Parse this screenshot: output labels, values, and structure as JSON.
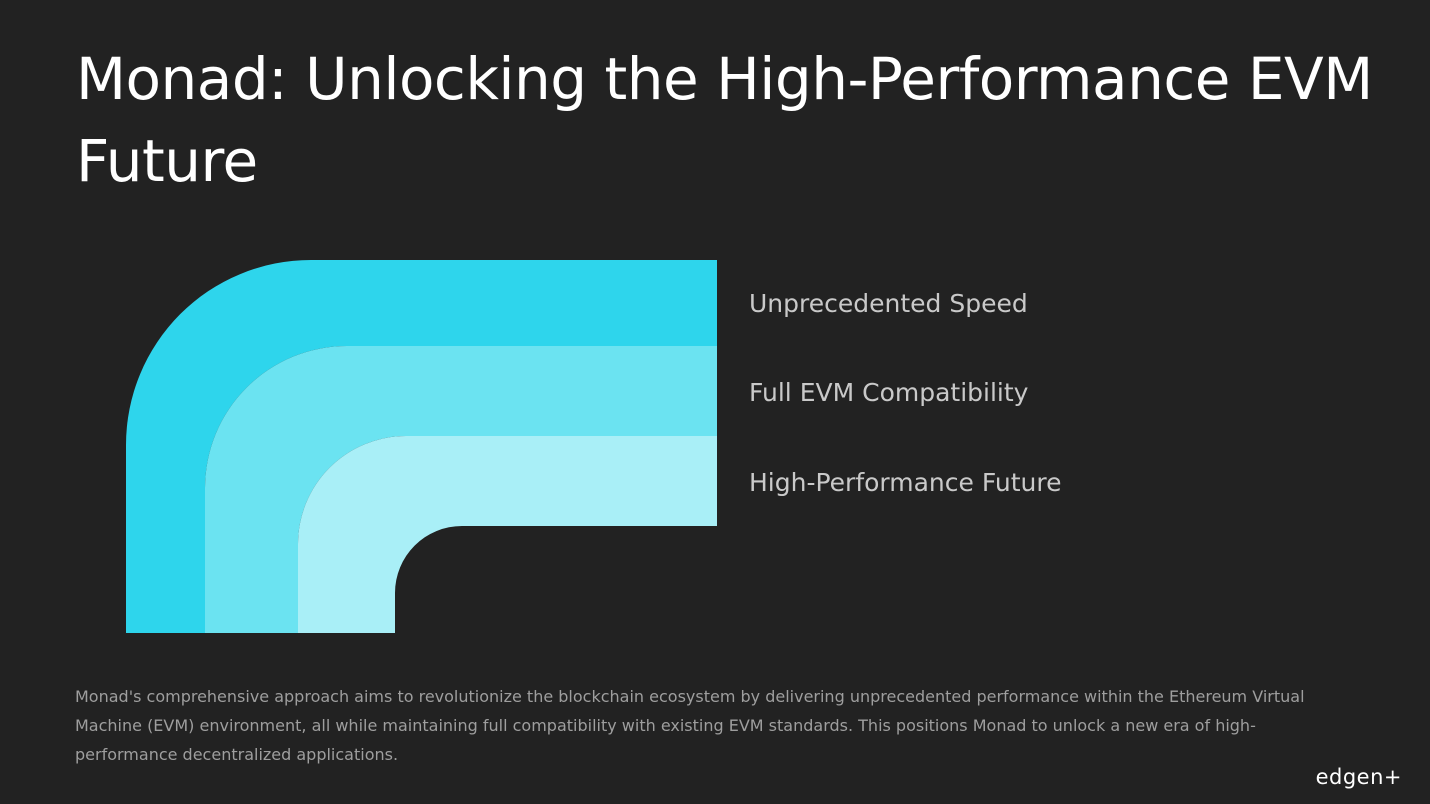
{
  "slide": {
    "title": "Monad: Unlocking the High-Performance EVM Future",
    "layers": [
      {
        "label": "Unprecedented Speed",
        "color": "#2ed5ec"
      },
      {
        "label": "Full EVM Compatibility",
        "color": "#6be3f1"
      },
      {
        "label": "High-Performance Future",
        "color": "#a9eff7"
      }
    ],
    "description": "Monad's comprehensive approach aims to revolutionize the blockchain ecosystem by delivering unprecedented performance within the Ethereum Virtual Machine (EVM) environment, all while maintaining full compatibility with existing EVM standards. This positions Monad to unlock a new era of high-performance decentralized applications.",
    "logo": "edgen+"
  },
  "colors": {
    "background": "#222222",
    "title": "#ffffff"
  }
}
